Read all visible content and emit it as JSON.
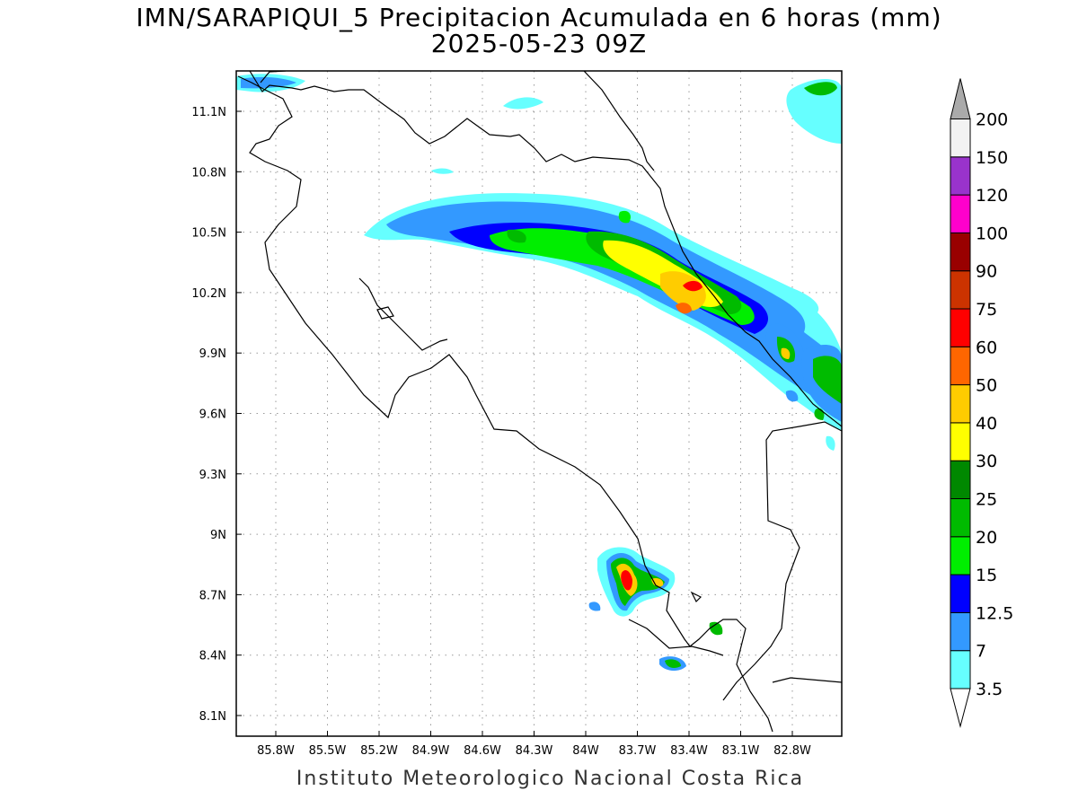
{
  "title": "IMN/SARAPIQUI_5 Precipitacion Acumulada en 6 horas (mm)",
  "subtitle": "2025-05-23 09Z",
  "footer": "Instituto Meteorologico Nacional Costa Rica",
  "map": {
    "lon_labels": [
      "85.8W",
      "85.5W",
      "85.2W",
      "84.9W",
      "84.6W",
      "84.3W",
      "84W",
      "83.7W",
      "83.4W",
      "83.1W",
      "82.8W"
    ],
    "lat_labels": [
      "11.1N",
      "10.8N",
      "10.5N",
      "10.2N",
      "9.9N",
      "9.6N",
      "9.3N",
      "9N",
      "8.7N",
      "8.4N",
      "8.1N"
    ],
    "gridlines": "dotted"
  },
  "legend": {
    "levels": [
      "3.5",
      "7",
      "12.5",
      "15",
      "20",
      "25",
      "30",
      "40",
      "50",
      "60",
      "75",
      "90",
      "100",
      "120",
      "150",
      "200"
    ],
    "colors": [
      "#66ffff",
      "#3399ff",
      "#0000ff",
      "#00ee00",
      "#00bb00",
      "#008800",
      "#ffff00",
      "#ffcc00",
      "#ff6600",
      "#ff0000",
      "#cc3300",
      "#990000",
      "#ff00cc",
      "#9933cc",
      "#f2f2f2",
      "#aaaaaa"
    ]
  }
}
